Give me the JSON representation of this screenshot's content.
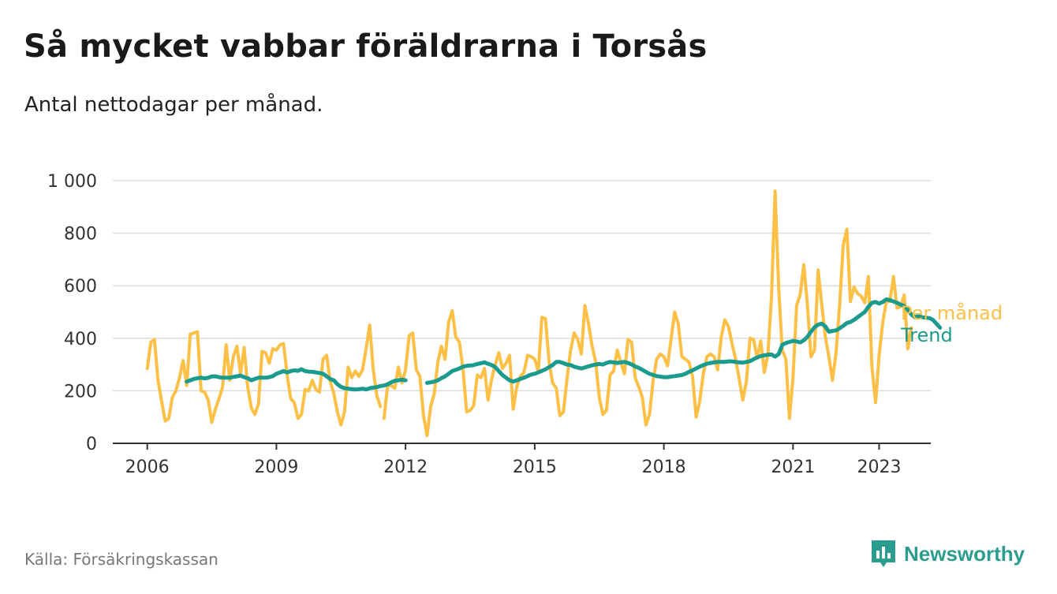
{
  "title": "Så mycket vabbar föräldrarna i Torsås",
  "subtitle": "Antal nettodagar per månad.",
  "source": "Källa: Försäkringskassan",
  "logo_text": "Newsworthy",
  "colors": {
    "monthly": "#fcc047",
    "trend": "#1a9b8d",
    "grid": "#dddddd",
    "axis": "#333333",
    "brand": "#2a9d8f"
  },
  "chart_data": {
    "type": "line",
    "xlim": [
      2005.2,
      2024.2
    ],
    "ylim": [
      0,
      1000
    ],
    "grid": true,
    "y_ticks": [
      0,
      200,
      400,
      600,
      800,
      1000
    ],
    "y_tick_labels": [
      "0",
      "200",
      "400",
      "600",
      "800",
      "1 000"
    ],
    "x_ticks": [
      2006,
      2009,
      2012,
      2015,
      2018,
      2021,
      2023
    ],
    "x_tick_labels": [
      "2006",
      "2009",
      "2012",
      "2015",
      "2018",
      "2021",
      "2023"
    ],
    "series": [
      {
        "name": "Per månad",
        "color": "#fcc047",
        "segments": [
          {
            "start": 2006.0,
            "values": [
              285,
              385,
              395,
              240,
              160,
              85,
              95,
              175,
              200,
              250,
              315,
              220,
              415,
              420,
              425,
              200,
              195,
              165,
              80,
              130,
              170,
              215,
              375,
              240,
              330,
              370,
              265,
              365,
              215,
              135,
              110,
              150,
              350,
              345,
              305,
              360,
              355,
              375,
              380,
              260,
              170,
              155,
              95,
              110,
              205,
              200,
              240,
              205,
              195,
              320,
              335,
              235,
              190,
              120,
              70,
              120,
              290,
              250,
              275,
              255,
              280,
              360,
              450,
              280,
              180,
              140
            ]
          },
          {
            "start": 2011.5,
            "values": [
              95,
              220,
              220,
              210,
              290,
              230,
              280,
              410,
              420,
              280,
              255,
              105,
              30,
              140,
              190,
              310,
              370,
              320,
              460,
              505,
              405,
              385,
              285,
              120,
              125,
              145,
              260,
              250,
              285,
              165,
              245,
              300,
              345,
              285,
              305,
              335,
              130,
              215,
              255,
              270,
              335,
              330,
              320,
              275,
              480,
              475,
              310,
              230,
              210,
              105,
              120,
              245,
              355,
              420,
              395,
              340,
              525,
              455,
              370,
              310,
              175,
              110,
              125,
              260,
              275,
              355,
              310,
              265,
              395,
              385,
              250,
              215,
              175,
              70,
              110,
              240,
              320,
              340,
              330,
              295,
              395,
              500,
              455,
              330,
              320,
              310,
              255,
              100,
              160,
              265,
              330,
              340,
              330,
              280,
              405,
              470,
              445,
              380,
              320,
              245,
              165,
              235,
              400,
              395,
              325,
              390,
              270,
              340,
              560,
              960,
              590,
              355,
              320,
              95,
              250,
              525,
              565,
              680,
              530,
              330,
              355,
              660,
              530,
              405,
              330,
              240,
              345,
              530,
              755,
              815,
              540,
              595,
              570,
              560,
              535,
              635,
              290,
              155,
              335,
              460,
              540,
              540,
              635,
              515,
              520,
              565,
              360,
              440
            ]
          }
        ]
      },
      {
        "name": "Trend",
        "color": "#1a9b8d",
        "segments": [
          {
            "start": 2006.917,
            "values": [
              235,
              240,
              245,
              248,
              250,
              247,
              250,
              255,
              255,
              252,
              250,
              250,
              250,
              253,
              255,
              258,
              252,
              248,
              240,
              245,
              250,
              250,
              250,
              252,
              256,
              265,
              270,
              275,
              270,
              275,
              278,
              276,
              282,
              275,
              273,
              272,
              270,
              268,
              265,
              255,
              245,
              240,
              225,
              215,
              210,
              208,
              206,
              205,
              206,
              208,
              205,
              210,
              212,
              214,
              218,
              220,
              225,
              232,
              238,
              240,
              242,
              240
            ]
          },
          {
            "start": 2012.5,
            "values": [
              230,
              232,
              235,
              240,
              248,
              255,
              265,
              275,
              280,
              285,
              292,
              295,
              296,
              298,
              302,
              305,
              308,
              303,
              298,
              290,
              275,
              260,
              250,
              240,
              235,
              240,
              245,
              250,
              256,
              262,
              265,
              270,
              276,
              282,
              290,
              298,
              310,
              310,
              305,
              300,
              298,
              292,
              288,
              285,
              289,
              293,
              297,
              300,
              302,
              300,
              306,
              310,
              308,
              306,
              308,
              310,
              306,
              300,
              293,
              287,
              280,
              272,
              265,
              260,
              256,
              254,
              252,
              252,
              254,
              256,
              258,
              260,
              265,
              272,
              278,
              285,
              292,
              298,
              303,
              306,
              308,
              310,
              310,
              310,
              312,
              312,
              310,
              308,
              307,
              310,
              313,
              320,
              327,
              332,
              335,
              337,
              338,
              330,
              340,
              375,
              382,
              386,
              390,
              388,
              384,
              392,
              405,
              425,
              442,
              452,
              456,
              445,
              425,
              428,
              430,
              438,
              447,
              458,
              462,
              470,
              480,
              490,
              500,
              520,
              535,
              538,
              532,
              538,
              548,
              545,
              540,
              535,
              528,
              523,
              508,
              490,
              480,
              485,
              480,
              478,
              477,
              470,
              455,
              440
            ]
          }
        ]
      }
    ],
    "series_labels": [
      "Per månad",
      "Trend"
    ]
  }
}
